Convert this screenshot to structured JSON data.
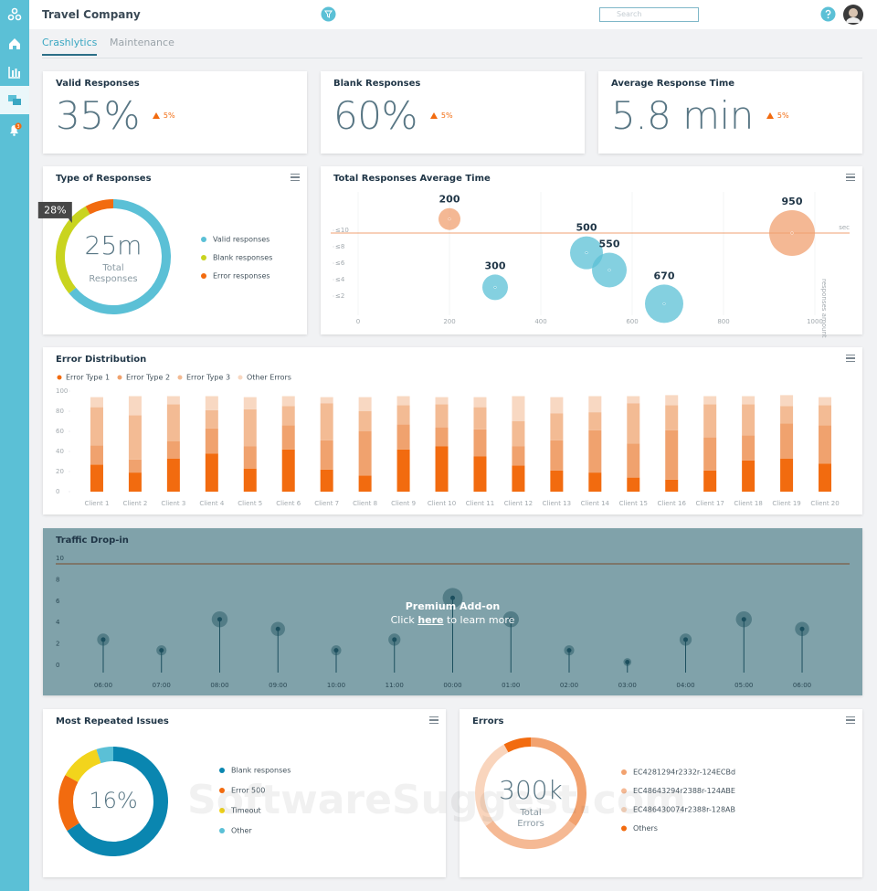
{
  "header": {
    "title": "Travel Company",
    "search_placeholder": "Search",
    "notifications": 3
  },
  "tabs": [
    "Crashlytics",
    "Maintenance"
  ],
  "kpis": [
    {
      "label": "Valid Responses",
      "value": "35%",
      "change": "5%"
    },
    {
      "label": "Blank Responses",
      "value": "60%",
      "change": "5%"
    },
    {
      "label": "Average Response Time",
      "value": "5.8 min",
      "change": "5%"
    }
  ],
  "chart_data": [
    {
      "type": "donut",
      "title": "Type of Responses",
      "center_value": "25m",
      "center_label": "Total Responses",
      "categories": [
        "Valid responses",
        "Blank responses",
        "Error responses"
      ],
      "values": [
        64,
        28,
        8
      ],
      "value_labels": [
        null,
        "28%",
        null
      ],
      "colors": [
        "#5bc0d6",
        "#c9d41f",
        "#f26b0f"
      ]
    },
    {
      "type": "bubble",
      "title": "Total Responses Average Time",
      "x": [
        200,
        300,
        500,
        550,
        670,
        950
      ],
      "y": [
        11.7,
        3.4,
        7.6,
        5.5,
        1.4,
        10
      ],
      "sizes": [
        12,
        14,
        18,
        19,
        21,
        25
      ],
      "colors": [
        "#f0a070",
        "#5bc0d6",
        "#5bc0d6",
        "#5bc0d6",
        "#5bc0d6",
        "#f0a070"
      ],
      "xlim": [
        0,
        1000
      ],
      "xticks": [
        0,
        200,
        400,
        600,
        800,
        1000
      ],
      "ylim": [
        0,
        15
      ],
      "yticks": [
        {
          "value": 2,
          "label": "≤2"
        },
        {
          "value": 4,
          "label": "≤4"
        },
        {
          "value": 6,
          "label": "≤6"
        },
        {
          "value": 8,
          "label": "≤8"
        },
        {
          "value": 10,
          "label": "≤10"
        }
      ],
      "reference_line": {
        "value": 10,
        "label": "sec"
      },
      "size_label": "responses amount",
      "grid": true
    },
    {
      "type": "stacked-bar",
      "title": "Error Distribution",
      "categories": [
        "Client 1",
        "Client 2",
        "Client 3",
        "Client 4",
        "Client 5",
        "Client 6",
        "Client 7",
        "Client 8",
        "Client 9",
        "Client 10",
        "Client 11",
        "Client 12",
        "Client 13",
        "Client 14",
        "Client 15",
        "Client 16",
        "Client 17",
        "Client 18",
        "Client 19",
        "Client 20"
      ],
      "series": [
        {
          "name": "Error Type 1",
          "color": "#f26b0f",
          "values": [
            27,
            19,
            33,
            38,
            23,
            42,
            22,
            16,
            42,
            45,
            35,
            26,
            21,
            19,
            14,
            12,
            21,
            31,
            33,
            28
          ]
        },
        {
          "name": "Error Type 2",
          "color": "#f0a26e",
          "values": [
            19,
            13,
            17,
            25,
            22,
            24,
            29,
            44,
            25,
            19,
            27,
            19,
            30,
            42,
            34,
            49,
            33,
            25,
            35,
            38
          ]
        },
        {
          "name": "Error Type 3",
          "color": "#f3bb94",
          "values": [
            38,
            44,
            37,
            18,
            37,
            19,
            37,
            20,
            19,
            23,
            22,
            25,
            27,
            18,
            40,
            25,
            33,
            31,
            17,
            20
          ]
        },
        {
          "name": "Other Errors",
          "color": "#f8d8c2",
          "values": [
            10,
            19,
            8,
            14,
            12,
            10,
            6,
            14,
            9,
            7,
            10,
            25,
            16,
            16,
            7,
            10,
            8,
            8,
            11,
            8
          ]
        }
      ],
      "ylim": [
        0,
        100
      ],
      "yticks": [
        0,
        20,
        40,
        60,
        80,
        100
      ]
    },
    {
      "type": "lollipop",
      "title": "Traffic Drop-in",
      "categories": [
        "06:00",
        "07:00",
        "08:00",
        "09:00",
        "10:00",
        "11:00",
        "00:00",
        "01:00",
        "02:00",
        "03:00",
        "04:00",
        "05:00",
        "06:00"
      ],
      "values": [
        2.4,
        1.4,
        4.3,
        3.4,
        1.4,
        2.4,
        6.3,
        4.3,
        1.4,
        0.3,
        2.4,
        4.3,
        3.4
      ],
      "color": "#1c4f5e",
      "ylim": [
        0,
        10
      ],
      "yticks": [
        0,
        2,
        4,
        6,
        8,
        10
      ],
      "reference_line": 10,
      "overlay": {
        "title": "Premium Add-on",
        "text_before": "Click",
        "link": "here",
        "text_after": "to learn more"
      }
    },
    {
      "type": "donut",
      "title": "Most Repeated Issues",
      "center_value": "16%",
      "categories": [
        "Blank responses",
        "Error 500",
        "Timeout",
        "Other"
      ],
      "values": [
        66,
        17,
        12,
        5
      ],
      "colors": [
        "#0a86b0",
        "#f26b0f",
        "#f2d41c",
        "#5bc0d6"
      ]
    },
    {
      "type": "donut",
      "title": "Errors",
      "center_value": "300k",
      "center_label": "Total Errors",
      "categories": [
        "EC4281294r2332r-124ECBd",
        "EC48643294r2388r-124ABE",
        "EC486430074r2388r-128AB",
        "Others"
      ],
      "values": [
        35,
        30,
        27,
        8
      ],
      "colors": [
        "#f2a26f",
        "#f5b994",
        "#f9d5bd",
        "#f26b0f"
      ]
    }
  ],
  "watermark": "SoftwareSuggest.com"
}
